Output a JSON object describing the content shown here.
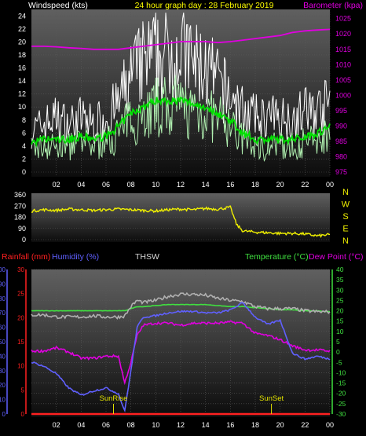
{
  "colors": {
    "wind_avg": "#00e000",
    "wind_gust": "#ffffff",
    "wind_light": "#b0f0b0",
    "barometer": "#e000e0",
    "direction": "#f0f000",
    "rainfall": "#ff2020",
    "humidity": "#6060ff",
    "temperature": "#40e040",
    "dewpoint": "#e000e0",
    "thsw": "#b0b0b0",
    "sun": "#e0e000",
    "title": "#ffff00"
  },
  "chart_data": [
    {
      "type": "line",
      "title": "24 hour graph day : 28 February 2019",
      "ylabel": "Windspeed (kts)",
      "y2label": "Barometer (kpa)",
      "ylim": [
        0,
        25
      ],
      "y2lim": [
        975,
        1028
      ],
      "yticks": [
        0,
        2,
        4,
        6,
        8,
        10,
        12,
        14,
        16,
        18,
        20,
        22,
        24
      ],
      "y2ticks": [
        975,
        980,
        985,
        990,
        995,
        1000,
        1005,
        1010,
        1015,
        1020,
        1025
      ],
      "xticks": [
        "02",
        "04",
        "06",
        "08",
        "10",
        "12",
        "14",
        "16",
        "18",
        "20",
        "22",
        "00"
      ],
      "x_hours": [
        0,
        1,
        2,
        3,
        4,
        5,
        6,
        7,
        8,
        9,
        10,
        11,
        12,
        13,
        14,
        15,
        16,
        17,
        18,
        19,
        20,
        21,
        22,
        23,
        24
      ],
      "series": [
        {
          "name": "Windspeed",
          "role": "gust",
          "values": [
            6,
            7,
            8,
            7,
            8,
            7,
            8,
            10,
            14,
            16,
            17,
            17,
            18,
            16,
            15,
            13,
            11,
            9,
            8,
            8,
            8,
            8,
            9,
            9,
            10
          ]
        },
        {
          "name": "Windspeed",
          "role": "avg",
          "values": [
            4.5,
            5,
            5,
            5,
            5.5,
            5,
            5.5,
            7,
            9,
            10,
            11,
            11,
            11,
            10.5,
            10,
            9,
            8,
            6,
            5,
            5,
            5,
            5,
            5.5,
            6,
            7
          ]
        },
        {
          "name": "Barometer",
          "values": [
            1016,
            1016,
            1015.8,
            1015.5,
            1015.3,
            1015,
            1015,
            1015,
            1015.5,
            1016,
            1016.5,
            1017,
            1017.5,
            1017.5,
            1017.5,
            1017.2,
            1017.5,
            1018,
            1018.5,
            1019,
            1019.5,
            1020.5,
            1021,
            1021.3,
            1021.5
          ]
        }
      ]
    },
    {
      "type": "line",
      "ylim": [
        0,
        360
      ],
      "yticks": [
        0,
        90,
        180,
        270,
        360
      ],
      "compass": [
        "N",
        "W",
        "S",
        "E",
        "N"
      ],
      "x_hours": [
        0,
        1,
        2,
        3,
        4,
        5,
        6,
        7,
        8,
        9,
        10,
        11,
        12,
        13,
        14,
        15,
        16,
        16.5,
        17,
        18,
        19,
        20,
        21,
        22,
        23,
        24
      ],
      "series": [
        {
          "name": "Wind direction",
          "values": [
            230,
            240,
            235,
            245,
            240,
            235,
            240,
            245,
            240,
            235,
            230,
            240,
            245,
            240,
            250,
            245,
            260,
            120,
            70,
            60,
            55,
            50,
            50,
            45,
            30,
            40
          ]
        }
      ]
    },
    {
      "type": "line",
      "labels": {
        "rainfall": "Rainfall (mm)",
        "humidity": "Humidity (%)",
        "thsw": "THSW",
        "temperature": "Temperature (°C)",
        "dewpoint": "Dew Point (°C)"
      },
      "y_humidity_lim": [
        0,
        100
      ],
      "y_humidity_ticks": [
        0,
        10,
        20,
        30,
        40,
        50,
        60,
        70,
        80,
        90,
        100
      ],
      "y_rain_lim": [
        0,
        30
      ],
      "y_rain_ticks": [
        0,
        5,
        10,
        15,
        20,
        25,
        30
      ],
      "y_temp_lim": [
        -30,
        40
      ],
      "y_temp_ticks": [
        -30,
        -25,
        -20,
        -15,
        -10,
        -5,
        0,
        5,
        10,
        15,
        20,
        25,
        30,
        35,
        40
      ],
      "xticks": [
        "02",
        "04",
        "06",
        "08",
        "10",
        "12",
        "14",
        "16",
        "18",
        "20",
        "22",
        "00"
      ],
      "annotations": [
        {
          "text": "SunRise",
          "x": 6.6
        },
        {
          "text": "SunSet",
          "x": 19.3
        }
      ],
      "x_hours": [
        0,
        1,
        2,
        3,
        4,
        5,
        6,
        7,
        7.5,
        8,
        8.5,
        9,
        10,
        11,
        12,
        13,
        14,
        15,
        16,
        17,
        18,
        19,
        20,
        21,
        22,
        23,
        24
      ],
      "series": [
        {
          "name": "Temperature",
          "axis": "temp",
          "values": [
            20,
            20,
            20,
            20,
            20,
            20,
            20,
            20,
            20,
            21,
            22,
            22,
            22.5,
            23,
            23,
            23,
            23,
            22.5,
            22,
            22,
            21.5,
            21,
            20.5,
            20.5,
            20,
            20,
            19.5
          ]
        },
        {
          "name": "THSW",
          "axis": "temp",
          "values": [
            18,
            18,
            17,
            17,
            17,
            17.5,
            17,
            17,
            17.5,
            22,
            25,
            24,
            25,
            27,
            28,
            28,
            27.5,
            26,
            25,
            24.5,
            22,
            21,
            21,
            21,
            20,
            19.5,
            19.5
          ]
        },
        {
          "name": "Dew Point",
          "axis": "temp",
          "values": [
            0.5,
            0.5,
            2,
            0,
            -3,
            -3,
            -2,
            -2,
            -15,
            -5,
            8,
            13,
            14,
            14,
            13,
            14,
            14,
            14,
            14.5,
            14,
            9,
            8,
            6,
            3,
            1,
            1,
            0.5
          ]
        },
        {
          "name": "Humidity",
          "axis": "humidity",
          "values": [
            36,
            33,
            28,
            18,
            13,
            16,
            18,
            14,
            2,
            30,
            60,
            67,
            68,
            70,
            71,
            71,
            70,
            70,
            72,
            77,
            67,
            62,
            65,
            42,
            38,
            40,
            38
          ]
        },
        {
          "name": "Rainfall",
          "axis": "rain",
          "values": [
            0,
            0,
            0,
            0,
            0,
            0,
            0,
            0,
            0,
            0,
            0,
            0,
            0,
            0,
            0,
            0,
            0,
            0,
            0,
            0,
            0,
            0,
            0,
            0,
            0,
            0,
            0
          ]
        }
      ]
    }
  ]
}
